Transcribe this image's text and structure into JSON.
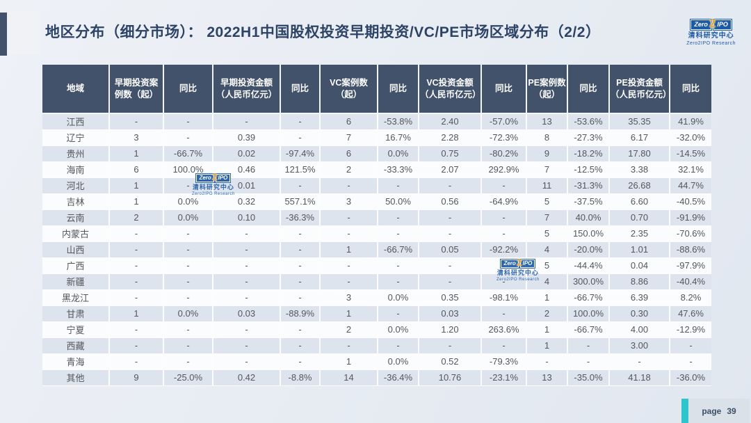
{
  "slide": {
    "title": "地区分布（细分市场）： 2022H1中国股权投资早期投资/VC/PE市场区域分布（2/2）",
    "page_label": "page",
    "page_number": "39"
  },
  "logo": {
    "part_zero": "Zero",
    "part_two": "2",
    "part_ipo": "IPO",
    "cn_name": "清科研究中心",
    "en_name": "Zero2IPO Research"
  },
  "colors": {
    "header_bg": "#42526b",
    "row_alt_bg": "#dee4ed",
    "row_bg": "#fbfcfd",
    "accent_teal": "#2ec6cc",
    "title_color": "#2d4366",
    "logo_blue": "#1c5aa6",
    "logo_orange": "#f7a823"
  },
  "table": {
    "columns": [
      "地域",
      "早期投资案\n例数（起）",
      "同比",
      "早期投资金额\n（人民币亿元）",
      "同比",
      "VC案例数\n（起）",
      "同比",
      "VC投资金额\n（人民币亿元）",
      "同比",
      "PE案例数\n（起）",
      "同比",
      "PE投资金额\n（人民币亿元）",
      "同比"
    ],
    "rows": [
      [
        "江西",
        "-",
        "-",
        "-",
        "-",
        "6",
        "-53.8%",
        "2.40",
        "-57.0%",
        "13",
        "-53.6%",
        "35.35",
        "41.9%"
      ],
      [
        "辽宁",
        "3",
        "-",
        "0.39",
        "-",
        "7",
        "16.7%",
        "2.28",
        "-72.3%",
        "8",
        "-27.3%",
        "6.17",
        "-32.0%"
      ],
      [
        "贵州",
        "1",
        "-66.7%",
        "0.02",
        "-97.4%",
        "6",
        "0.0%",
        "0.75",
        "-80.2%",
        "9",
        "-18.2%",
        "17.80",
        "-14.5%"
      ],
      [
        "海南",
        "6",
        "100.0%",
        "0.46",
        "121.5%",
        "2",
        "-33.3%",
        "2.07",
        "292.9%",
        "7",
        "-12.5%",
        "3.38",
        "32.1%"
      ],
      [
        "河北",
        "1",
        "-",
        "0.01",
        "-",
        "-",
        "-",
        "-",
        "-",
        "11",
        "-31.3%",
        "26.68",
        "44.7%"
      ],
      [
        "吉林",
        "1",
        "0.0%",
        "0.32",
        "557.1%",
        "3",
        "50.0%",
        "0.56",
        "-64.9%",
        "5",
        "-37.5%",
        "6.60",
        "-40.5%"
      ],
      [
        "云南",
        "2",
        "0.0%",
        "0.10",
        "-36.3%",
        "-",
        "-",
        "-",
        "-",
        "7",
        "40.0%",
        "0.70",
        "-91.9%"
      ],
      [
        "内蒙古",
        "-",
        "-",
        "-",
        "-",
        "-",
        "-",
        "-",
        "-",
        "5",
        "150.0%",
        "2.35",
        "-70.6%"
      ],
      [
        "山西",
        "-",
        "-",
        "-",
        "-",
        "1",
        "-66.7%",
        "0.05",
        "-92.2%",
        "4",
        "-20.0%",
        "1.01",
        "-88.6%"
      ],
      [
        "广西",
        "-",
        "-",
        "-",
        "-",
        "-",
        "-",
        "-",
        "-",
        "5",
        "-44.4%",
        "0.04",
        "-97.9%"
      ],
      [
        "新疆",
        "-",
        "-",
        "-",
        "-",
        "-",
        "-",
        "-",
        "-",
        "4",
        "300.0%",
        "8.86",
        "-40.4%"
      ],
      [
        "黑龙江",
        "-",
        "-",
        "-",
        "-",
        "3",
        "0.0%",
        "0.35",
        "-98.1%",
        "1",
        "-66.7%",
        "6.39",
        "8.2%"
      ],
      [
        "甘肃",
        "1",
        "0.0%",
        "0.03",
        "-88.9%",
        "1",
        "-",
        "0.03",
        "-",
        "2",
        "100.0%",
        "0.30",
        "47.6%"
      ],
      [
        "宁夏",
        "-",
        "-",
        "-",
        "-",
        "2",
        "0.0%",
        "1.20",
        "263.6%",
        "1",
        "-66.7%",
        "4.00",
        "-12.9%"
      ],
      [
        "西藏",
        "-",
        "-",
        "-",
        "-",
        "-",
        "-",
        "-",
        "-",
        "1",
        "-",
        "3.00",
        "-"
      ],
      [
        "青海",
        "-",
        "-",
        "-",
        "-",
        "1",
        "0.0%",
        "0.52",
        "-79.3%",
        "-",
        "-",
        "-",
        "-"
      ],
      [
        "其他",
        "9",
        "-25.0%",
        "0.42",
        "-8.8%",
        "14",
        "-36.4%",
        "10.76",
        "-23.1%",
        "13",
        "-35.0%",
        "41.18",
        "-36.0%"
      ]
    ]
  }
}
